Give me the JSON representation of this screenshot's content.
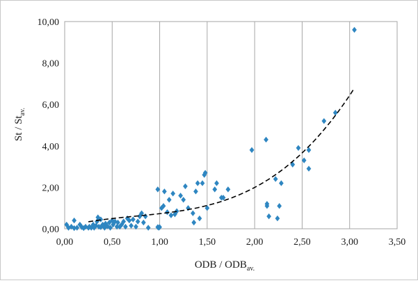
{
  "chart_data": {
    "type": "scatter",
    "xlabel": "ODB / ODB",
    "xlabel_sub": "av.",
    "ylabel": "St / St",
    "ylabel_sub": "av.",
    "xlim": [
      0,
      3.5
    ],
    "ylim": [
      0,
      10
    ],
    "xticks": [
      0,
      0.5,
      1,
      1.5,
      2,
      2.5,
      3,
      3.5
    ],
    "yticks": [
      0,
      2,
      4,
      6,
      8,
      10
    ],
    "xtick_labels": [
      "0,00",
      "0,50",
      "1,00",
      "1,50",
      "2,00",
      "2,50",
      "3,00",
      "3,50"
    ],
    "ytick_labels": [
      "0,00",
      "2,00",
      "4,00",
      "6,00",
      "8,00",
      "10,00"
    ],
    "grid": "vertical",
    "marker": "diamond",
    "marker_color": "#2e86c1",
    "trend_line_color": "#000000",
    "trend_line_style": "dashed",
    "points": [
      [
        0.02,
        0.2
      ],
      [
        0.04,
        0.05
      ],
      [
        0.07,
        0.1
      ],
      [
        0.1,
        0.4
      ],
      [
        0.1,
        0.03
      ],
      [
        0.13,
        0.05
      ],
      [
        0.16,
        0.2
      ],
      [
        0.18,
        0.08
      ],
      [
        0.2,
        0.03
      ],
      [
        0.22,
        0.1
      ],
      [
        0.25,
        0.05
      ],
      [
        0.26,
        0.1
      ],
      [
        0.28,
        0.05
      ],
      [
        0.3,
        0.2
      ],
      [
        0.31,
        0.05
      ],
      [
        0.33,
        0.15
      ],
      [
        0.34,
        0.35
      ],
      [
        0.35,
        0.55
      ],
      [
        0.36,
        0.1
      ],
      [
        0.38,
        0.45
      ],
      [
        0.38,
        0.08
      ],
      [
        0.4,
        0.2
      ],
      [
        0.42,
        0.05
      ],
      [
        0.43,
        0.25
      ],
      [
        0.45,
        0.12
      ],
      [
        0.47,
        0.3
      ],
      [
        0.48,
        0.05
      ],
      [
        0.5,
        0.4
      ],
      [
        0.51,
        0.2
      ],
      [
        0.53,
        0.35
      ],
      [
        0.55,
        0.1
      ],
      [
        0.56,
        0.3
      ],
      [
        0.58,
        0.1
      ],
      [
        0.6,
        0.2
      ],
      [
        0.62,
        0.35
      ],
      [
        0.64,
        0.1
      ],
      [
        0.66,
        0.5
      ],
      [
        0.68,
        0.4
      ],
      [
        0.7,
        0.15
      ],
      [
        0.72,
        0.45
      ],
      [
        0.75,
        0.1
      ],
      [
        0.77,
        0.35
      ],
      [
        0.79,
        0.6
      ],
      [
        0.81,
        0.75
      ],
      [
        0.83,
        0.3
      ],
      [
        0.85,
        0.6
      ],
      [
        0.88,
        0.05
      ],
      [
        0.98,
        1.9
      ],
      [
        0.98,
        0.08
      ],
      [
        0.99,
        0.05
      ],
      [
        1.0,
        0.08
      ],
      [
        1.02,
        1.0
      ],
      [
        1.04,
        1.1
      ],
      [
        1.05,
        1.8
      ],
      [
        1.08,
        0.8
      ],
      [
        1.1,
        1.4
      ],
      [
        1.12,
        0.65
      ],
      [
        1.14,
        1.7
      ],
      [
        1.16,
        0.7
      ],
      [
        1.18,
        0.85
      ],
      [
        1.22,
        1.6
      ],
      [
        1.25,
        1.4
      ],
      [
        1.27,
        2.05
      ],
      [
        1.3,
        1.0
      ],
      [
        1.35,
        0.75
      ],
      [
        1.36,
        0.3
      ],
      [
        1.38,
        1.8
      ],
      [
        1.4,
        2.2
      ],
      [
        1.42,
        0.5
      ],
      [
        1.45,
        2.2
      ],
      [
        1.47,
        2.6
      ],
      [
        1.48,
        2.7
      ],
      [
        1.5,
        1.0
      ],
      [
        1.58,
        1.9
      ],
      [
        1.6,
        2.2
      ],
      [
        1.65,
        1.5
      ],
      [
        1.67,
        1.5
      ],
      [
        1.72,
        1.9
      ],
      [
        1.97,
        3.8
      ],
      [
        2.12,
        4.3
      ],
      [
        2.13,
        1.2
      ],
      [
        2.13,
        1.1
      ],
      [
        2.15,
        0.6
      ],
      [
        2.22,
        2.4
      ],
      [
        2.24,
        0.5
      ],
      [
        2.26,
        1.1
      ],
      [
        2.28,
        2.2
      ],
      [
        2.4,
        3.1
      ],
      [
        2.46,
        3.9
      ],
      [
        2.52,
        3.3
      ],
      [
        2.57,
        3.8
      ],
      [
        2.57,
        2.9
      ],
      [
        2.73,
        5.2
      ],
      [
        2.85,
        5.6
      ],
      [
        3.05,
        9.6
      ]
    ],
    "trend_x_range": [
      0.25,
      3.05
    ],
    "trend_coefficients": [
      0.102,
      1.152,
      -0.949,
      0.423
    ]
  }
}
